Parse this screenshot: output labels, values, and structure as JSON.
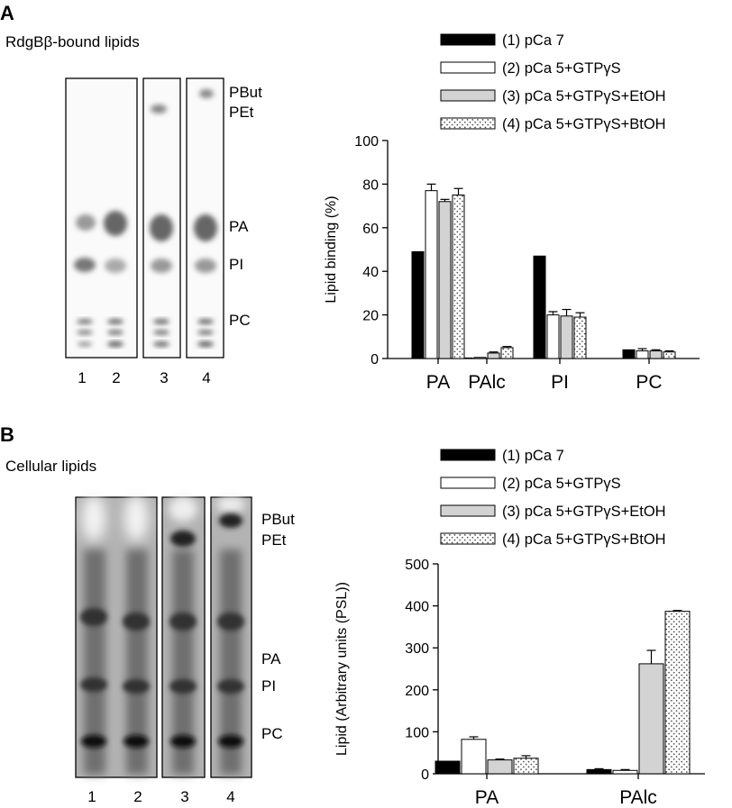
{
  "panel_a": {
    "letter": "A",
    "subtitle": "RdgBβ-bound lipids",
    "gel_labels": [
      "PBut",
      "PEt",
      "PA",
      "PI",
      "PC"
    ],
    "lane_numbers": [
      "1",
      "2",
      "3",
      "4"
    ]
  },
  "panel_b": {
    "letter": "B",
    "subtitle": "Cellular lipids",
    "gel_labels": [
      "PBut",
      "PEt",
      "PA",
      "PI",
      "PC"
    ],
    "lane_numbers": [
      "1",
      "2",
      "3",
      "4"
    ]
  },
  "legend": {
    "entries": [
      {
        "label": "(1) pCa 7",
        "style": "black"
      },
      {
        "label": "(2) pCa 5+GTPγS",
        "style": "white"
      },
      {
        "label": "(3) pCa 5+GTPγS+EtOH",
        "style": "gray"
      },
      {
        "label": "(4) pCa 5+GTPγS+BtOH",
        "style": "dotted"
      }
    ]
  },
  "colors": {
    "black": "#000000",
    "white": "#ffffff",
    "gray": "#d3d3d3",
    "dotted": "#ffffff"
  },
  "chart_data": [
    {
      "type": "bar",
      "categories": [
        "PA",
        "PAlc",
        "PI",
        "PC"
      ],
      "ylabel": "Lipid binding (%)",
      "ylim": [
        0,
        100
      ],
      "yticks": [
        0,
        20,
        40,
        60,
        80,
        100
      ],
      "grid": false,
      "series": [
        {
          "name": "(1) pCa 7",
          "values": [
            49,
            0,
            47,
            4
          ],
          "errors": [
            0,
            0,
            0,
            0
          ]
        },
        {
          "name": "(2) pCa 5+GTPγS",
          "values": [
            77,
            0.5,
            20,
            3.5
          ],
          "errors": [
            3,
            0,
            1.5,
            1
          ]
        },
        {
          "name": "(3) pCa 5+GTPγS+EtOH",
          "values": [
            72,
            2.5,
            19.5,
            3.5
          ],
          "errors": [
            1,
            0.5,
            3,
            0.5
          ]
        },
        {
          "name": "(4) pCa 5+GTPγS+BtOH",
          "values": [
            75,
            5,
            19,
            3
          ],
          "errors": [
            3,
            0.5,
            2,
            0.5
          ]
        }
      ]
    },
    {
      "type": "bar",
      "categories": [
        "PA",
        "PAlc"
      ],
      "ylabel": "Lipid (Arbitrary units (PSL))",
      "ylim": [
        0,
        500
      ],
      "yticks": [
        0,
        100,
        200,
        300,
        400,
        500
      ],
      "grid": false,
      "series": [
        {
          "name": "(1) pCa 7",
          "values": [
            30,
            10
          ],
          "errors": [
            0,
            2
          ]
        },
        {
          "name": "(2) pCa 5+GTPγS",
          "values": [
            82,
            8
          ],
          "errors": [
            6,
            2
          ]
        },
        {
          "name": "(3) pCa 5+GTPγS+EtOH",
          "values": [
            33,
            262
          ],
          "errors": [
            2,
            32
          ]
        },
        {
          "name": "(4) pCa 5+GTPγS+BtOH",
          "values": [
            37,
            387
          ],
          "errors": [
            6,
            2
          ]
        }
      ]
    }
  ]
}
